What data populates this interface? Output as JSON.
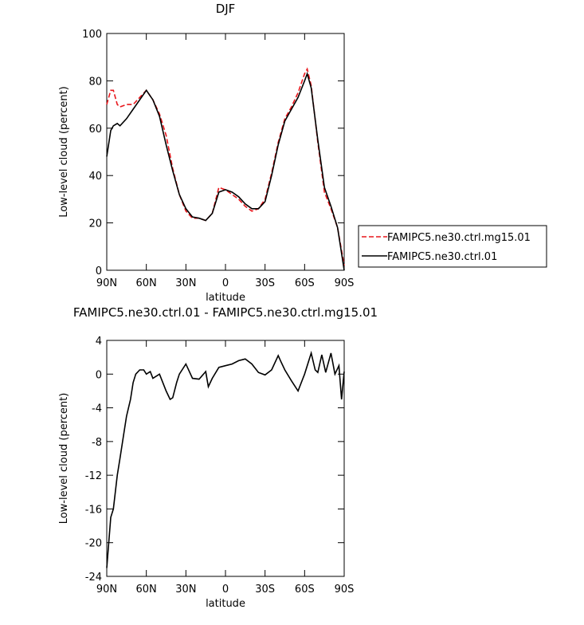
{
  "chart_data": [
    {
      "type": "line",
      "title": "DJF",
      "xlabel": "latitude",
      "ylabel": "Low-level cloud (percent)",
      "x": [
        90,
        87,
        85,
        82,
        80,
        75,
        70,
        65,
        60,
        55,
        50,
        45,
        40,
        35,
        30,
        25,
        20,
        15,
        10,
        5,
        0,
        -5,
        -10,
        -15,
        -20,
        -25,
        -30,
        -35,
        -40,
        -45,
        -50,
        -55,
        -60,
        -62,
        -65,
        -70,
        -75,
        -80,
        -85,
        -90
      ],
      "series": [
        {
          "name": "FAMIPC5.ne30.ctrl.mg15.01",
          "color": "#e8171c",
          "dashed": true,
          "values": [
            70,
            76,
            76,
            70,
            69,
            70,
            70,
            73,
            76,
            72,
            66,
            57,
            43,
            32,
            25,
            22,
            22,
            21,
            24,
            35,
            34,
            32,
            30,
            27,
            25,
            26,
            30,
            41,
            54,
            64,
            69,
            75,
            83,
            85,
            78,
            54,
            33,
            26,
            18,
            2
          ]
        },
        {
          "name": "FAMIPC5.ne30.ctrl.01",
          "color": "#000000",
          "dashed": false,
          "values": [
            48,
            59,
            61,
            62,
            61,
            64,
            68,
            72,
            76,
            72,
            65,
            53,
            42,
            32,
            26,
            22.5,
            22,
            21,
            24,
            33,
            34,
            33,
            31,
            28,
            26,
            26,
            29,
            40,
            53,
            63,
            68,
            73,
            80,
            83,
            77,
            55,
            35,
            27,
            18,
            0
          ]
        }
      ],
      "xlim": [
        90,
        -90
      ],
      "xticks": [
        {
          "value": 90,
          "label": "90N"
        },
        {
          "value": 60,
          "label": "60N"
        },
        {
          "value": 30,
          "label": "30N"
        },
        0,
        {
          "value": -30,
          "label": "30S"
        },
        {
          "value": -60,
          "label": "60S"
        },
        {
          "value": -90,
          "label": "90S"
        }
      ],
      "ylim": [
        0,
        100
      ],
      "yticks": [
        0,
        20,
        40,
        60,
        80,
        100
      ],
      "legend": "right"
    },
    {
      "type": "line",
      "title": "FAMIPC5.ne30.ctrl.01 - FAMIPC5.ne30.ctrl.mg15.01",
      "xlabel": "latitude",
      "ylabel": "Low-level cloud (percent)",
      "x": [
        90,
        87,
        85,
        82,
        80,
        77,
        75,
        72,
        70,
        68,
        65,
        62,
        60,
        57,
        55,
        50,
        45,
        42,
        40,
        37,
        35,
        30,
        25,
        20,
        15,
        13,
        10,
        5,
        0,
        -5,
        -10,
        -15,
        -20,
        -25,
        -30,
        -35,
        -40,
        -42,
        -45,
        -50,
        -55,
        -60,
        -65,
        -68,
        -70,
        -73,
        -76,
        -80,
        -83,
        -86,
        -88,
        -90
      ],
      "series": [
        {
          "name": "FAMIPC5.ne30.ctrl.01 - FAMIPC5.ne30.ctrl.mg15.01",
          "color": "#000000",
          "dashed": false,
          "values": [
            -23,
            -17,
            -16,
            -12,
            -10,
            -7,
            -5,
            -3,
            -1,
            0,
            0.5,
            0.5,
            0,
            0.3,
            -0.5,
            0,
            -2,
            -3,
            -2.8,
            -1,
            0,
            1.2,
            -0.5,
            -0.6,
            0.3,
            -1.5,
            -0.5,
            0.8,
            1,
            1.2,
            1.6,
            1.8,
            1.2,
            0.2,
            -0.1,
            0.5,
            2.2,
            1.5,
            0.5,
            -0.8,
            -2,
            0,
            2.5,
            0.5,
            0.2,
            2.3,
            0.2,
            2.5,
            0,
            1,
            -3,
            0.3
          ]
        }
      ],
      "xlim": [
        90,
        -90
      ],
      "xticks": [
        {
          "value": 90,
          "label": "90N"
        },
        {
          "value": 60,
          "label": "60N"
        },
        {
          "value": 30,
          "label": "30N"
        },
        0,
        {
          "value": -30,
          "label": "30S"
        },
        {
          "value": -60,
          "label": "60S"
        },
        {
          "value": -90,
          "label": "90S"
        }
      ],
      "ylim": [
        -24,
        4
      ],
      "yticks": [
        -24,
        -20,
        -16,
        -12,
        -8,
        -4,
        0,
        4
      ]
    }
  ]
}
